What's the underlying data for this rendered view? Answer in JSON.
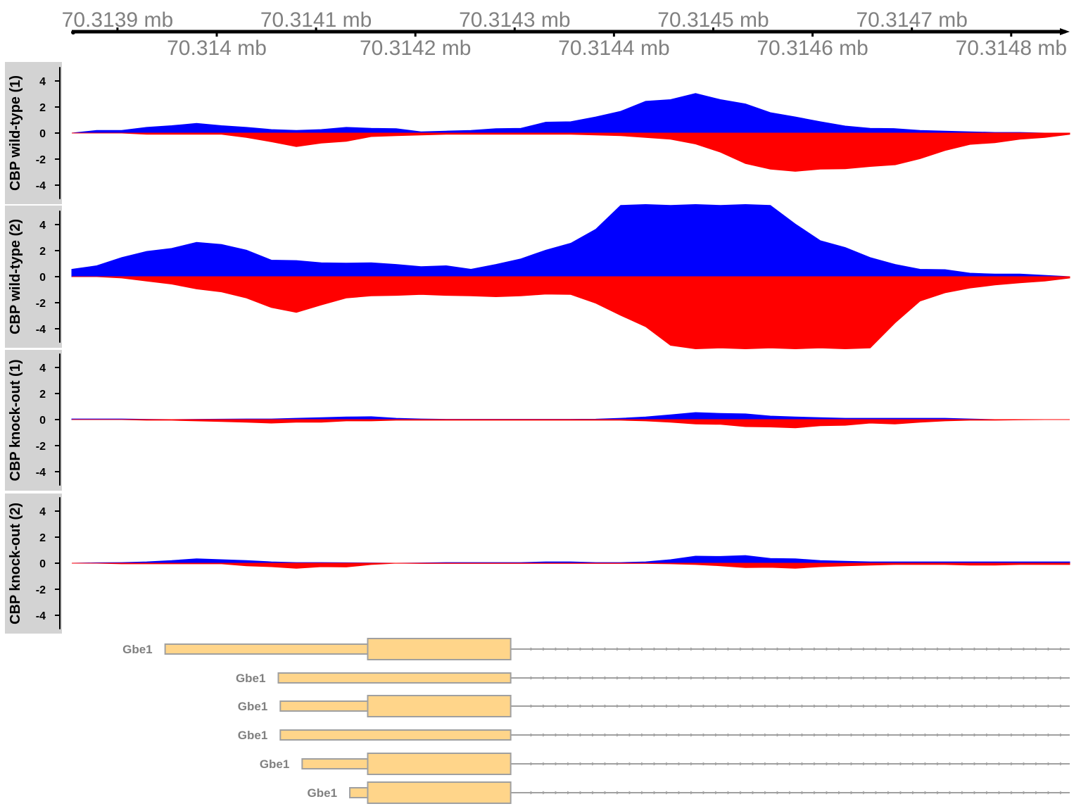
{
  "chart_data": {
    "type": "area",
    "title": "",
    "xlabel": "",
    "x_range_bp": [
      70313855,
      70314855
    ],
    "genome_axis": {
      "ticks": [
        {
          "bp": 70313900,
          "label": "70.3139 mb",
          "side": "top"
        },
        {
          "bp": 70314000,
          "label": "70.314 mb",
          "side": "bottom"
        },
        {
          "bp": 70314100,
          "label": "70.3141 mb",
          "side": "top"
        },
        {
          "bp": 70314200,
          "label": "70.3142 mb",
          "side": "bottom"
        },
        {
          "bp": 70314300,
          "label": "70.3143 mb",
          "side": "top"
        },
        {
          "bp": 70314400,
          "label": "70.3144 mb",
          "side": "bottom"
        },
        {
          "bp": 70314500,
          "label": "70.3145 mb",
          "side": "top"
        },
        {
          "bp": 70314600,
          "label": "70.3146 mb",
          "side": "bottom"
        },
        {
          "bp": 70314700,
          "label": "70.3147 mb",
          "side": "top"
        },
        {
          "bp": 70314800,
          "label": "70.3148 mb",
          "side": "bottom"
        }
      ]
    },
    "bin_size_bp": 25,
    "ylim": [
      -5.5,
      5.5
    ],
    "yticks": [
      4,
      2,
      0,
      -2,
      -4
    ],
    "ytick_labels": [
      "4",
      "2",
      "0",
      "-2",
      "-4"
    ],
    "colors": {
      "positive_strand": "#0000ff",
      "negative_strand": "#ff0000",
      "panel": "#d3d3d3",
      "gene_fill": "#ffd58a",
      "gene_border": "#a0a0a0",
      "axis_label": "#808080"
    },
    "tracks": [
      {
        "name": "CBP wild-type (1)",
        "positive": [
          0,
          0.2,
          0.2,
          0.4,
          0.6,
          0.7,
          0.6,
          0.4,
          0.3,
          0.2,
          0.3,
          0.4,
          0.4,
          0.3,
          0.1,
          0.15,
          0.2,
          0.3,
          0.4,
          0.8,
          0.9,
          1.2,
          1.7,
          2.4,
          2.6,
          3.0,
          2.6,
          2.2,
          1.6,
          1.2,
          0.9,
          0.5,
          0.4,
          0.3,
          0.2,
          0.15,
          0.1,
          0.05,
          0.05,
          0,
          0
        ],
        "negative": [
          0,
          0,
          0,
          0.1,
          0.1,
          0.1,
          0.1,
          0.3,
          0.7,
          1.0,
          0.8,
          0.6,
          0.3,
          0.2,
          0.15,
          0.1,
          0.1,
          0.1,
          0.1,
          0.1,
          0.1,
          0.15,
          0.2,
          0.3,
          0.5,
          0.8,
          1.5,
          2.3,
          2.8,
          2.9,
          2.8,
          2.7,
          2.6,
          2.4,
          2.0,
          1.3,
          0.9,
          0.7,
          0.5,
          0.3,
          0.1
        ]
      },
      {
        "name": "CBP wild-type (2)",
        "positive": [
          0.6,
          0.8,
          1.5,
          1.9,
          2.2,
          2.6,
          2.5,
          2.0,
          1.3,
          1.2,
          1.1,
          1.0,
          1.1,
          0.9,
          0.8,
          0.8,
          0.6,
          0.9,
          1.4,
          2.0,
          2.6,
          3.6,
          5.5,
          5.5,
          5.5,
          5.5,
          5.5,
          5.5,
          5.5,
          4.0,
          2.8,
          2.2,
          1.5,
          0.9,
          0.6,
          0.5,
          0.3,
          0.2,
          0.2,
          0.1,
          0
        ],
        "negative": [
          0,
          0,
          0.1,
          0.3,
          0.6,
          0.9,
          1.2,
          1.6,
          2.4,
          2.7,
          2.2,
          1.6,
          1.5,
          1.4,
          1.4,
          1.4,
          1.5,
          1.5,
          1.5,
          1.3,
          1.4,
          2.0,
          3.0,
          3.8,
          5.3,
          5.5,
          5.5,
          5.5,
          5.5,
          5.5,
          5.5,
          5.5,
          5.5,
          3.5,
          1.9,
          1.2,
          0.9,
          0.6,
          0.5,
          0.3,
          0.1
        ]
      },
      {
        "name": "CBP knock-out (1)",
        "positive": [
          0.05,
          0.05,
          0.05,
          0.02,
          0,
          0.02,
          0.03,
          0.05,
          0.05,
          0.1,
          0.15,
          0.2,
          0.25,
          0.1,
          0.05,
          0.02,
          0.02,
          0.02,
          0.02,
          0.02,
          0.02,
          0.03,
          0.1,
          0.2,
          0.4,
          0.5,
          0.5,
          0.4,
          0.3,
          0.2,
          0.15,
          0.1,
          0.1,
          0.1,
          0.1,
          0.1,
          0.05,
          0,
          0,
          0,
          0
        ],
        "negative": [
          0,
          0,
          0,
          0.05,
          0.05,
          0.1,
          0.15,
          0.2,
          0.3,
          0.2,
          0.2,
          0.1,
          0.1,
          0.05,
          0.05,
          0.05,
          0.05,
          0.05,
          0.05,
          0.05,
          0.05,
          0.05,
          0.05,
          0.1,
          0.2,
          0.3,
          0.4,
          0.5,
          0.6,
          0.6,
          0.5,
          0.4,
          0.3,
          0.3,
          0.2,
          0.1,
          0.05,
          0.05,
          0.02,
          0,
          0
        ]
      },
      {
        "name": "CBP knock-out (2)",
        "positive": [
          0,
          0.03,
          0.05,
          0.1,
          0.2,
          0.3,
          0.3,
          0.2,
          0.1,
          0.05,
          0.05,
          0.03,
          0.02,
          0,
          0.02,
          0.05,
          0.05,
          0.05,
          0.05,
          0.1,
          0.1,
          0.05,
          0.05,
          0.1,
          0.3,
          0.5,
          0.55,
          0.55,
          0.4,
          0.3,
          0.2,
          0.15,
          0.1,
          0.1,
          0.1,
          0.1,
          0.1,
          0.1,
          0.1,
          0.1,
          0.1
        ],
        "negative": [
          0,
          0,
          0.05,
          0.05,
          0.05,
          0.05,
          0.05,
          0.2,
          0.3,
          0.35,
          0.3,
          0.25,
          0.1,
          0,
          0.02,
          0.02,
          0.02,
          0.02,
          0.02,
          0.02,
          0.02,
          0.02,
          0.02,
          0.02,
          0.05,
          0.1,
          0.2,
          0.3,
          0.35,
          0.35,
          0.3,
          0.2,
          0.15,
          0.1,
          0.1,
          0.1,
          0.15,
          0.15,
          0.1,
          0.1,
          0.1
        ]
      }
    ],
    "genes": [
      {
        "label": "Gbe1",
        "utr_start": 70313948,
        "cds_start": 70314152,
        "exon_end": 70314296,
        "has_utr": true
      },
      {
        "label": "Gbe1",
        "utr_start": 70314062,
        "cds_start": 70314062,
        "exon_end": 70314296,
        "has_utr": false
      },
      {
        "label": "Gbe1",
        "utr_start": 70314064,
        "cds_start": 70314152,
        "exon_end": 70314296,
        "has_utr": true
      },
      {
        "label": "Gbe1",
        "utr_start": 70314064,
        "cds_start": 70314064,
        "exon_end": 70314296,
        "has_utr": false
      },
      {
        "label": "Gbe1",
        "utr_start": 70314086,
        "cds_start": 70314152,
        "exon_end": 70314296,
        "has_utr": true
      },
      {
        "label": "Gbe1",
        "utr_start": 70314134,
        "cds_start": 70314152,
        "exon_end": 70314296,
        "has_utr": true
      }
    ]
  }
}
